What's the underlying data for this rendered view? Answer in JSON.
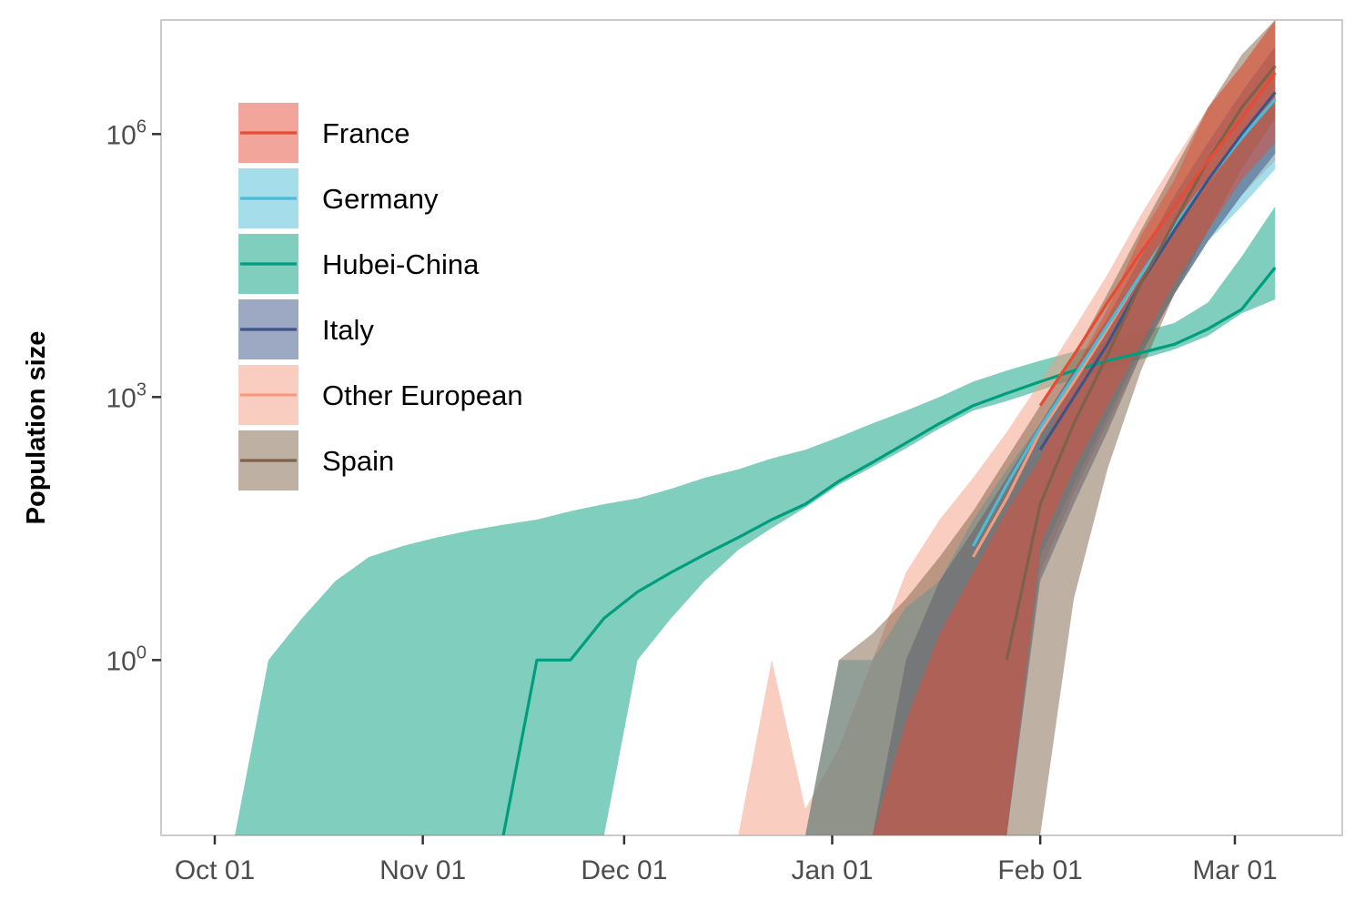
{
  "chart_data": {
    "type": "area",
    "title": "",
    "xlabel": "",
    "ylabel": "Population size",
    "y_scale": "log10",
    "y_range": [
      0.01,
      20000000
    ],
    "x_range": [
      "2019-09-23",
      "2020-03-17"
    ],
    "grid": false,
    "legend_position": "top-left inside",
    "x_ticks": [
      {
        "value": "2019-10-01",
        "label": "Oct 01"
      },
      {
        "value": "2019-11-01",
        "label": "Nov 01"
      },
      {
        "value": "2019-12-01",
        "label": "Dec 01"
      },
      {
        "value": "2020-01-01",
        "label": "Jan 01"
      },
      {
        "value": "2020-02-01",
        "label": "Feb 01"
      },
      {
        "value": "2020-03-01",
        "label": "Mar 01"
      }
    ],
    "y_ticks": [
      {
        "value": 1,
        "base": "10",
        "exp": "0"
      },
      {
        "value": 1000,
        "base": "10",
        "exp": "3"
      },
      {
        "value": 1000000,
        "base": "10",
        "exp": "6"
      }
    ],
    "series": [
      {
        "name": "Hubei-China",
        "line_color": "#009E7E",
        "band_color": "#009E7E",
        "band_opacity": 0.5,
        "dates": [
          "2019-10-04",
          "2019-10-09",
          "2019-10-14",
          "2019-10-19",
          "2019-10-24",
          "2019-10-29",
          "2019-11-03",
          "2019-11-08",
          "2019-11-13",
          "2019-11-18",
          "2019-11-23",
          "2019-11-28",
          "2019-12-03",
          "2019-12-08",
          "2019-12-13",
          "2019-12-18",
          "2019-12-23",
          "2019-12-28",
          "2020-01-02",
          "2020-01-07",
          "2020-01-12",
          "2020-01-17",
          "2020-01-22",
          "2020-01-27",
          "2020-02-01",
          "2020-02-06",
          "2020-02-11",
          "2020-02-16",
          "2020-02-21",
          "2020-02-26",
          "2020-03-02",
          "2020-03-07"
        ],
        "line": [
          null,
          null,
          null,
          null,
          null,
          null,
          null,
          null,
          0.01,
          1,
          1,
          3,
          6,
          10,
          16,
          25,
          40,
          60,
          110,
          180,
          300,
          500,
          800,
          1100,
          1500,
          2000,
          2600,
          3200,
          4000,
          6000,
          10000,
          30000
        ],
        "lower": [
          0.01,
          0.01,
          0.01,
          0.01,
          0.01,
          0.01,
          0.01,
          0.01,
          0.01,
          0.01,
          0.01,
          0.01,
          1,
          3,
          8,
          18,
          32,
          55,
          100,
          160,
          260,
          440,
          700,
          900,
          1200,
          1600,
          2100,
          2700,
          3500,
          5000,
          9000,
          13000
        ],
        "upper": [
          0.01,
          1,
          3,
          8,
          15,
          20,
          25,
          30,
          35,
          40,
          50,
          60,
          70,
          90,
          120,
          150,
          200,
          250,
          350,
          500,
          700,
          1000,
          1500,
          2000,
          2600,
          3300,
          4200,
          5500,
          7000,
          12000,
          40000,
          150000
        ]
      },
      {
        "name": "Other European",
        "line_color": "#F39B7F",
        "band_color": "#F39B7F",
        "band_opacity": 0.5,
        "dates": [
          "2019-12-18",
          "2019-12-23",
          "2019-12-28",
          "2020-01-02",
          "2020-01-07",
          "2020-01-12",
          "2020-01-17",
          "2020-01-22",
          "2020-01-27",
          "2020-02-01",
          "2020-02-06",
          "2020-02-11",
          "2020-02-16",
          "2020-02-21",
          "2020-02-26",
          "2020-03-02",
          "2020-03-07"
        ],
        "line": [
          null,
          null,
          null,
          null,
          null,
          null,
          null,
          15,
          70,
          400,
          1500,
          6000,
          25000,
          90000,
          300000,
          1000000,
          3000000
        ],
        "lower": [
          0.01,
          0.01,
          0.01,
          0.01,
          0.01,
          0.01,
          0.01,
          0.01,
          0.01,
          10,
          80,
          500,
          3000,
          15000,
          60000,
          200000,
          500000
        ],
        "upper": [
          0.01,
          1,
          0.02,
          0.1,
          1,
          10,
          40,
          120,
          400,
          1500,
          6000,
          25000,
          120000,
          500000,
          2000000,
          6000000,
          20000000
        ]
      },
      {
        "name": "Germany",
        "line_color": "#4DBBD5",
        "band_color": "#4DBBD5",
        "band_opacity": 0.5,
        "dates": [
          "2019-12-28",
          "2020-01-02",
          "2020-01-07",
          "2020-01-12",
          "2020-01-17",
          "2020-01-22",
          "2020-01-27",
          "2020-02-01",
          "2020-02-06",
          "2020-02-11",
          "2020-02-16",
          "2020-02-21",
          "2020-02-26",
          "2020-03-02",
          "2020-03-07"
        ],
        "line": [
          null,
          null,
          null,
          null,
          null,
          20,
          100,
          450,
          1700,
          6500,
          25000,
          90000,
          300000,
          900000,
          2500000
        ],
        "lower": [
          0.01,
          0.01,
          0.01,
          0.01,
          0.01,
          0.01,
          0.01,
          15,
          100,
          600,
          3500,
          15000,
          60000,
          150000,
          400000
        ],
        "upper": [
          0.01,
          1,
          1,
          4,
          8,
          40,
          150,
          500,
          2000,
          7000,
          25000,
          80000,
          250000,
          800000,
          3000000
        ]
      },
      {
        "name": "Italy",
        "line_color": "#3C5488",
        "band_color": "#3C5488",
        "band_opacity": 0.5,
        "dates": [
          "2020-01-07",
          "2020-01-12",
          "2020-01-17",
          "2020-01-22",
          "2020-01-27",
          "2020-02-01",
          "2020-02-06",
          "2020-02-11",
          "2020-02-16",
          "2020-02-21",
          "2020-02-26",
          "2020-03-02",
          "2020-03-07"
        ],
        "line": [
          null,
          null,
          null,
          null,
          null,
          250,
          1000,
          4000,
          20000,
          80000,
          300000,
          1000000,
          3000000
        ],
        "lower": [
          0.01,
          0.01,
          0.01,
          0.01,
          0.01,
          8,
          60,
          400,
          3000,
          15000,
          60000,
          200000,
          600000
        ],
        "upper": [
          0.01,
          1,
          8,
          30,
          120,
          500,
          2000,
          8000,
          40000,
          200000,
          800000,
          3000000,
          10000000
        ]
      },
      {
        "name": "Spain",
        "line_color": "#7E6148",
        "band_color": "#7E6148",
        "band_opacity": 0.5,
        "dates": [
          "2019-12-28",
          "2020-01-02",
          "2020-01-07",
          "2020-01-12",
          "2020-01-17",
          "2020-01-22",
          "2020-01-27",
          "2020-02-01",
          "2020-02-06",
          "2020-02-11",
          "2020-02-16",
          "2020-02-21",
          "2020-02-26",
          "2020-03-02",
          "2020-03-07"
        ],
        "line": [
          null,
          null,
          null,
          null,
          null,
          null,
          1,
          60,
          500,
          3000,
          20000,
          100000,
          500000,
          2000000,
          6000000
        ],
        "lower": [
          0.01,
          0.01,
          0.01,
          0.01,
          0.01,
          0.01,
          0.01,
          0.01,
          5,
          150,
          2000,
          15000,
          80000,
          400000,
          1500000
        ],
        "upper": [
          0.01,
          1,
          2,
          5,
          15,
          50,
          200,
          800,
          3000,
          15000,
          80000,
          400000,
          2000000,
          8000000,
          20000000
        ]
      },
      {
        "name": "France",
        "line_color": "#E64B35",
        "band_color": "#E64B35",
        "band_opacity": 0.5,
        "dates": [
          "2020-01-07",
          "2020-01-12",
          "2020-01-17",
          "2020-01-22",
          "2020-01-27",
          "2020-02-01",
          "2020-02-06",
          "2020-02-11",
          "2020-02-16",
          "2020-02-21",
          "2020-02-26",
          "2020-03-02",
          "2020-03-07"
        ],
        "line": [
          null,
          null,
          null,
          null,
          null,
          800,
          3000,
          12000,
          45000,
          150000,
          500000,
          1500000,
          5000000
        ],
        "lower": [
          0.01,
          0.01,
          0.01,
          0.01,
          0.01,
          20,
          150,
          800,
          4000,
          20000,
          80000,
          300000,
          800000
        ],
        "upper": [
          0.01,
          0.2,
          2,
          10,
          50,
          200,
          2000,
          10000,
          70000,
          300000,
          2000000,
          6000000,
          20000000
        ]
      }
    ],
    "legend": [
      {
        "name": "France",
        "color": "#E64B35"
      },
      {
        "name": "Germany",
        "color": "#4DBBD5"
      },
      {
        "name": "Hubei-China",
        "color": "#009E7E"
      },
      {
        "name": "Italy",
        "color": "#3C5488"
      },
      {
        "name": "Other European",
        "color": "#F39B7F"
      },
      {
        "name": "Spain",
        "color": "#7E6148"
      }
    ]
  }
}
